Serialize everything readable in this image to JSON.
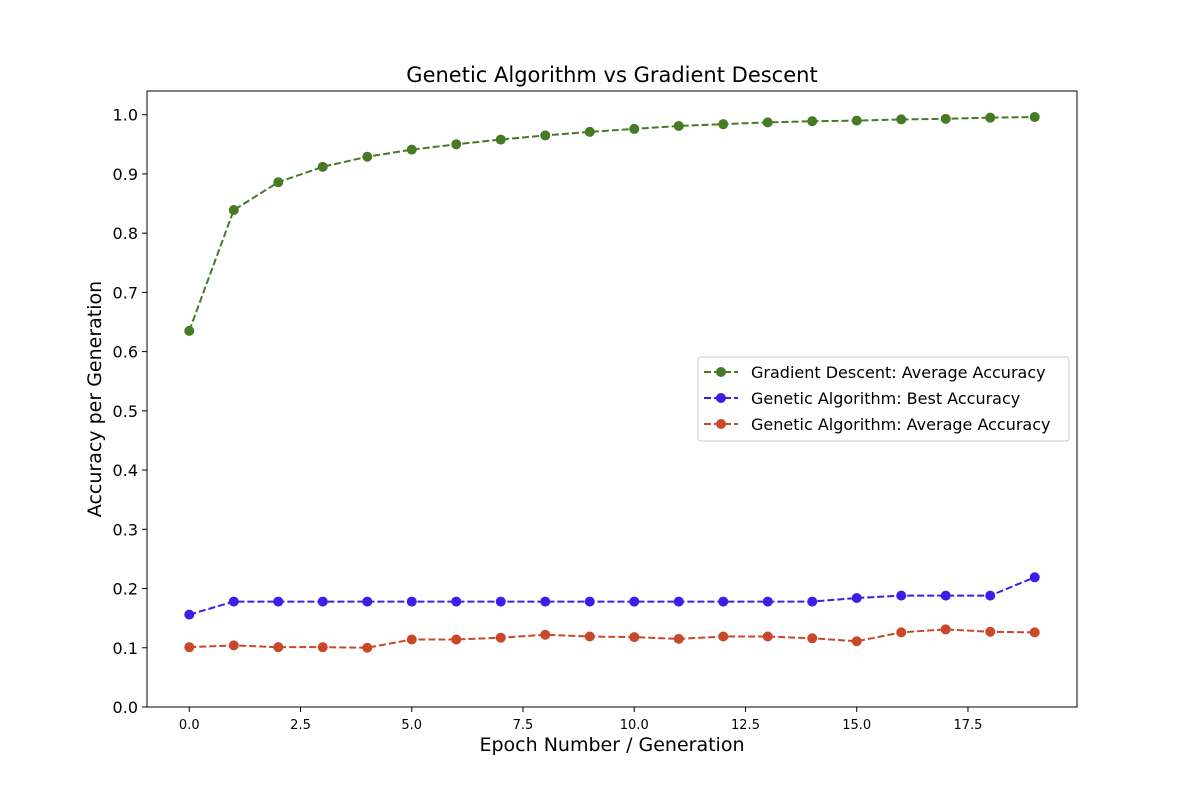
{
  "chart_data": {
    "type": "line",
    "title": "Genetic Algorithm vs Gradient Descent",
    "xlabel": "Epoch Number / Generation",
    "ylabel": "Accuracy per Generation",
    "xlim": [
      -0.95,
      19.95
    ],
    "ylim": [
      0.0,
      1.04
    ],
    "xticks": [
      0.0,
      2.5,
      5.0,
      7.5,
      10.0,
      12.5,
      15.0,
      17.5
    ],
    "xtick_labels": [
      "0.0",
      "2.5",
      "5.0",
      "7.5",
      "10.0",
      "12.5",
      "15.0",
      "17.5"
    ],
    "yticks": [
      0.0,
      0.1,
      0.2,
      0.3,
      0.4,
      0.5,
      0.6,
      0.7,
      0.8,
      0.9,
      1.0
    ],
    "ytick_labels": [
      "0.0",
      "0.1",
      "0.2",
      "0.3",
      "0.4",
      "0.5",
      "0.6",
      "0.7",
      "0.8",
      "0.9",
      "1.0"
    ],
    "grid": false,
    "legend_position": "center-right",
    "x": [
      0,
      1,
      2,
      3,
      4,
      5,
      6,
      7,
      8,
      9,
      10,
      11,
      12,
      13,
      14,
      15,
      16,
      17,
      18,
      19
    ],
    "series": [
      {
        "name": "Gradient Descent: Average Accuracy",
        "color": "#467a24",
        "values": [
          0.635,
          0.839,
          0.886,
          0.912,
          0.929,
          0.941,
          0.95,
          0.958,
          0.965,
          0.971,
          0.976,
          0.981,
          0.984,
          0.987,
          0.989,
          0.99,
          0.992,
          0.993,
          0.995,
          0.996
        ]
      },
      {
        "name": "Genetic Algorithm: Best Accuracy",
        "color": "#3c1ee6",
        "values": [
          0.156,
          0.178,
          0.178,
          0.178,
          0.178,
          0.178,
          0.178,
          0.178,
          0.178,
          0.178,
          0.178,
          0.178,
          0.178,
          0.178,
          0.178,
          0.184,
          0.188,
          0.188,
          0.188,
          0.219
        ]
      },
      {
        "name": "Genetic Algorithm: Average Accuracy",
        "color": "#c9482a",
        "values": [
          0.101,
          0.104,
          0.101,
          0.101,
          0.1,
          0.114,
          0.114,
          0.117,
          0.122,
          0.119,
          0.118,
          0.115,
          0.119,
          0.119,
          0.116,
          0.111,
          0.126,
          0.131,
          0.127,
          0.126
        ]
      }
    ]
  }
}
